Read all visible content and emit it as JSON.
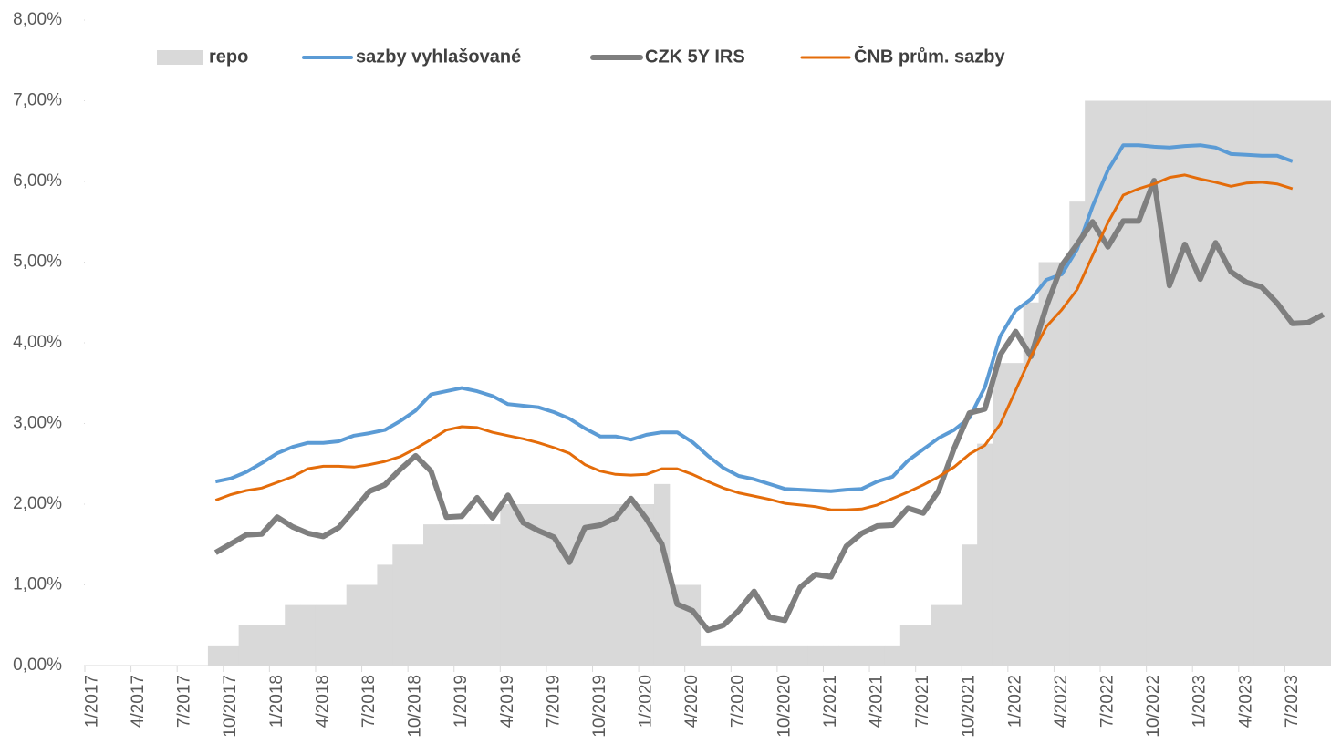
{
  "chart_data": {
    "type": "combo",
    "categories": [
      "1/2017",
      null,
      null,
      "4/2017",
      null,
      null,
      "7/2017",
      null,
      null,
      "10/2017",
      null,
      null,
      "1/2018",
      null,
      null,
      "4/2018",
      null,
      null,
      "7/2018",
      null,
      null,
      "10/2018",
      null,
      null,
      "1/2019",
      null,
      null,
      "4/2019",
      null,
      null,
      "7/2019",
      null,
      null,
      "10/2019",
      null,
      null,
      "1/2020",
      null,
      null,
      "4/2020",
      null,
      null,
      "7/2020",
      null,
      null,
      "10/2020",
      null,
      null,
      "1/2021",
      null,
      null,
      "4/2021",
      null,
      null,
      "7/2021",
      null,
      null,
      "10/2021",
      null,
      null,
      "1/2022",
      null,
      null,
      "4/2022",
      null,
      null,
      "7/2022",
      null,
      null,
      "10/2022",
      null,
      null,
      "1/2023",
      null,
      null,
      "4/2023",
      null,
      null,
      "7/2023",
      null,
      null
    ],
    "series": [
      {
        "name": "repo",
        "type": "step-area",
        "color": "#d9d9d9",
        "values": [
          0,
          0,
          0,
          0,
          0,
          0,
          0,
          0,
          0.25,
          0.25,
          0.5,
          0.5,
          0.5,
          0.75,
          0.75,
          0.75,
          0.75,
          1.0,
          1.0,
          1.25,
          1.5,
          1.5,
          1.75,
          1.75,
          1.75,
          1.75,
          1.75,
          2.0,
          2.0,
          2.0,
          2.0,
          2.0,
          2.0,
          2.0,
          2.0,
          2.0,
          2.0,
          2.25,
          1.0,
          1.0,
          0.25,
          0.25,
          0.25,
          0.25,
          0.25,
          0.25,
          0.25,
          0.25,
          0.25,
          0.25,
          0.25,
          0.25,
          0.25,
          0.5,
          0.5,
          0.75,
          0.75,
          1.5,
          2.75,
          3.75,
          3.75,
          4.5,
          5.0,
          5.0,
          5.75,
          7.0,
          7.0,
          7.0,
          7.0,
          7.0,
          7.0,
          7.0,
          7.0,
          7.0,
          7.0,
          7.0,
          7.0,
          7.0,
          7.0,
          7.0,
          7.0
        ]
      },
      {
        "name": "sazby vyhlašované",
        "type": "line",
        "color": "#5b9bd5",
        "values": [
          null,
          null,
          null,
          null,
          null,
          null,
          null,
          null,
          2.28,
          2.32,
          2.4,
          2.51,
          2.63,
          2.71,
          2.76,
          2.76,
          2.78,
          2.85,
          2.88,
          2.92,
          3.03,
          3.16,
          3.36,
          3.4,
          3.44,
          3.4,
          3.34,
          3.24,
          3.22,
          3.2,
          3.14,
          3.06,
          2.94,
          2.84,
          2.84,
          2.8,
          2.86,
          2.89,
          2.89,
          2.77,
          2.6,
          2.45,
          2.35,
          2.31,
          2.25,
          2.19,
          2.18,
          2.17,
          2.16,
          2.18,
          2.19,
          2.28,
          2.34,
          2.54,
          2.68,
          2.82,
          2.92,
          3.07,
          3.45,
          4.08,
          4.4,
          4.54,
          4.78,
          4.85,
          5.16,
          5.69,
          6.14,
          6.45,
          6.45,
          6.43,
          6.42,
          6.44,
          6.45,
          6.42,
          6.34,
          6.33,
          6.32,
          6.32,
          6.25,
          null,
          null
        ]
      },
      {
        "name": "CZK 5Y IRS",
        "type": "line",
        "color": "#7f7f7f",
        "values": [
          null,
          null,
          null,
          null,
          null,
          null,
          null,
          null,
          1.4,
          1.51,
          1.62,
          1.63,
          1.84,
          1.72,
          1.64,
          1.6,
          1.71,
          1.93,
          2.16,
          2.24,
          2.43,
          2.6,
          2.41,
          1.84,
          1.85,
          2.08,
          1.83,
          2.11,
          1.77,
          1.67,
          1.59,
          1.28,
          1.71,
          1.74,
          1.83,
          2.07,
          1.82,
          1.51,
          0.76,
          0.68,
          0.44,
          0.5,
          0.68,
          0.92,
          0.6,
          0.56,
          0.97,
          1.13,
          1.1,
          1.48,
          1.64,
          1.73,
          1.74,
          1.95,
          1.89,
          2.17,
          2.69,
          3.13,
          3.18,
          3.85,
          4.14,
          3.83,
          4.45,
          4.96,
          5.22,
          5.5,
          5.19,
          5.51,
          5.51,
          6.01,
          4.71,
          5.22,
          4.79,
          5.24,
          4.88,
          4.75,
          4.69,
          4.49,
          4.24,
          4.25,
          4.35
        ]
      },
      {
        "name": "ČNB prům. sazby",
        "type": "line",
        "color": "#e46c0a",
        "values": [
          null,
          null,
          null,
          null,
          null,
          null,
          null,
          null,
          2.05,
          2.12,
          2.17,
          2.2,
          2.27,
          2.34,
          2.44,
          2.47,
          2.47,
          2.46,
          2.49,
          2.53,
          2.59,
          2.69,
          2.8,
          2.92,
          2.96,
          2.95,
          2.89,
          2.85,
          2.81,
          2.76,
          2.7,
          2.63,
          2.49,
          2.41,
          2.37,
          2.36,
          2.37,
          2.44,
          2.44,
          2.37,
          2.28,
          2.2,
          2.14,
          2.1,
          2.06,
          2.01,
          1.99,
          1.97,
          1.93,
          1.93,
          1.94,
          1.99,
          2.07,
          2.15,
          2.24,
          2.34,
          2.46,
          2.62,
          2.73,
          2.99,
          3.41,
          3.83,
          4.2,
          4.41,
          4.66,
          5.08,
          5.49,
          5.83,
          5.91,
          5.97,
          6.05,
          6.08,
          6.03,
          5.99,
          5.94,
          5.98,
          5.99,
          5.97,
          5.91,
          null,
          null
        ]
      }
    ],
    "ylim": [
      0,
      8
    ],
    "yticks": [
      {
        "value": 0,
        "label": "0,00%"
      },
      {
        "value": 1,
        "label": "1,00%"
      },
      {
        "value": 2,
        "label": "2,00%"
      },
      {
        "value": 3,
        "label": "3,00%"
      },
      {
        "value": 4,
        "label": "4,00%"
      },
      {
        "value": 5,
        "label": "5,00%"
      },
      {
        "value": 6,
        "label": "6,00%"
      },
      {
        "value": 7,
        "label": "7,00%"
      },
      {
        "value": 8,
        "label": "8,00%"
      }
    ],
    "grid": false,
    "legend": "top"
  }
}
